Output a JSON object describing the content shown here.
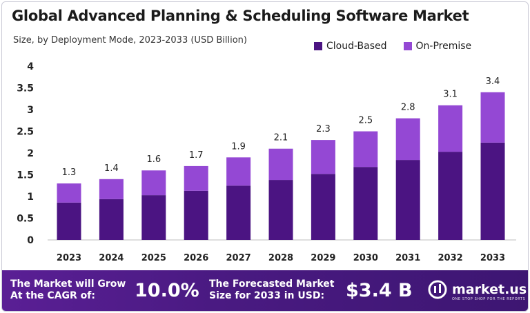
{
  "header": {
    "title": "Global Advanced Planning & Scheduling Software Market",
    "subtitle": "Size, by Deployment Mode, 2023-2033 (USD Billion)"
  },
  "legend": [
    {
      "label": "Cloud-Based",
      "color": "#4b1482"
    },
    {
      "label": "On-Premise",
      "color": "#9448d4"
    }
  ],
  "chart_data": {
    "type": "bar",
    "stacked": true,
    "categories": [
      "2023",
      "2024",
      "2025",
      "2026",
      "2027",
      "2028",
      "2029",
      "2030",
      "2031",
      "2032",
      "2033"
    ],
    "series": [
      {
        "name": "Cloud-Based",
        "values": [
          0.86,
          0.94,
          1.03,
          1.13,
          1.25,
          1.38,
          1.52,
          1.68,
          1.84,
          2.03,
          2.24
        ]
      },
      {
        "name": "On-Premise",
        "values": [
          0.44,
          0.46,
          0.57,
          0.57,
          0.65,
          0.72,
          0.78,
          0.82,
          0.96,
          1.07,
          1.16
        ]
      }
    ],
    "totals": [
      "1.3",
      "1.4",
      "1.6",
      "1.7",
      "1.9",
      "2.1",
      "2.3",
      "2.5",
      "2.8",
      "3.1",
      "3.4"
    ],
    "yticks": [
      "0",
      "0.5",
      "1",
      "1.5",
      "2",
      "2.5",
      "3",
      "3.5",
      "4"
    ],
    "ylim": [
      0,
      4
    ],
    "grid": false,
    "legend_position": "top-right"
  },
  "footer": {
    "cagr_label": "The Market will Grow\nAt the CAGR of:",
    "cagr_value": "10.0%",
    "forecast_label": "The Forecasted Market\nSize for 2033 in USD:",
    "forecast_value": "$3.4 B",
    "brand_name": "market.us",
    "brand_tagline": "ONE STOP SHOP FOR THE REPORTS",
    "brand_icon": "market-us-logo-icon"
  }
}
